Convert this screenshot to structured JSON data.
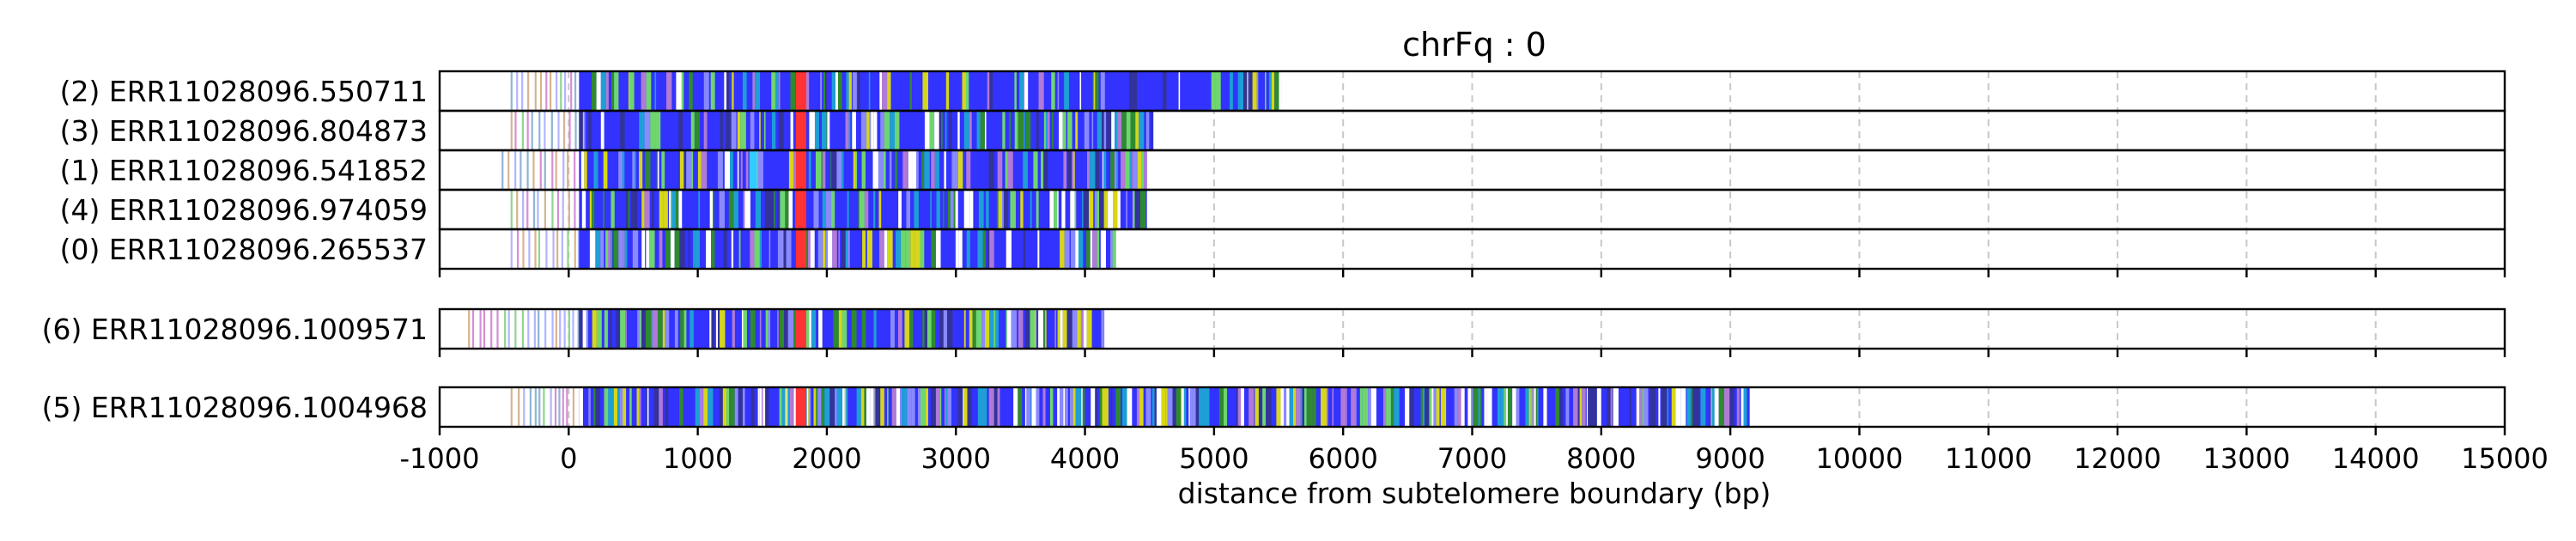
{
  "chart_data": {
    "type": "bar",
    "title": "chrFq : 0",
    "xlabel": "distance from subtelomere boundary (bp)",
    "xlim": [
      -1000,
      15000
    ],
    "xticks": [
      -1000,
      0,
      1000,
      2000,
      3000,
      4000,
      5000,
      6000,
      7000,
      8000,
      9000,
      10000,
      11000,
      12000,
      13000,
      14000,
      15000
    ],
    "grid": "vertical dashed",
    "groups": [
      {
        "reads": [
          {
            "label": "(2) ERR11028096.550711",
            "start": -450,
            "end": 5520
          },
          {
            "label": "(3) ERR11028096.804873",
            "start": -450,
            "end": 4530
          },
          {
            "label": "(1) ERR11028096.541852",
            "start": -520,
            "end": 4480
          },
          {
            "label": "(4) ERR11028096.974059",
            "start": -450,
            "end": 4480
          },
          {
            "label": "(0) ERR11028096.265537",
            "start": -450,
            "end": 4240
          }
        ]
      },
      {
        "reads": [
          {
            "label": "(6) ERR11028096.1009571",
            "start": -780,
            "end": 4150
          }
        ]
      },
      {
        "reads": [
          {
            "label": "(5) ERR11028096.1004968",
            "start": -450,
            "end": 9150
          }
        ]
      }
    ],
    "colors": {
      "dominant": "#3333ff",
      "mix": [
        "#2f8a2f",
        "#8a8aff",
        "#ffffff",
        "#d6d61a",
        "#b07ad6",
        "#1e9fd6",
        "#333399",
        "#6fd66f"
      ],
      "sparse": [
        "#8fd68f",
        "#d6b48f",
        "#b4b4ff",
        "#d68fd6",
        "#8fb4d6"
      ],
      "highlight": "#ff3333",
      "accent": "#33ccff",
      "axis": "#000000",
      "grid": "#c8c8c8"
    }
  }
}
